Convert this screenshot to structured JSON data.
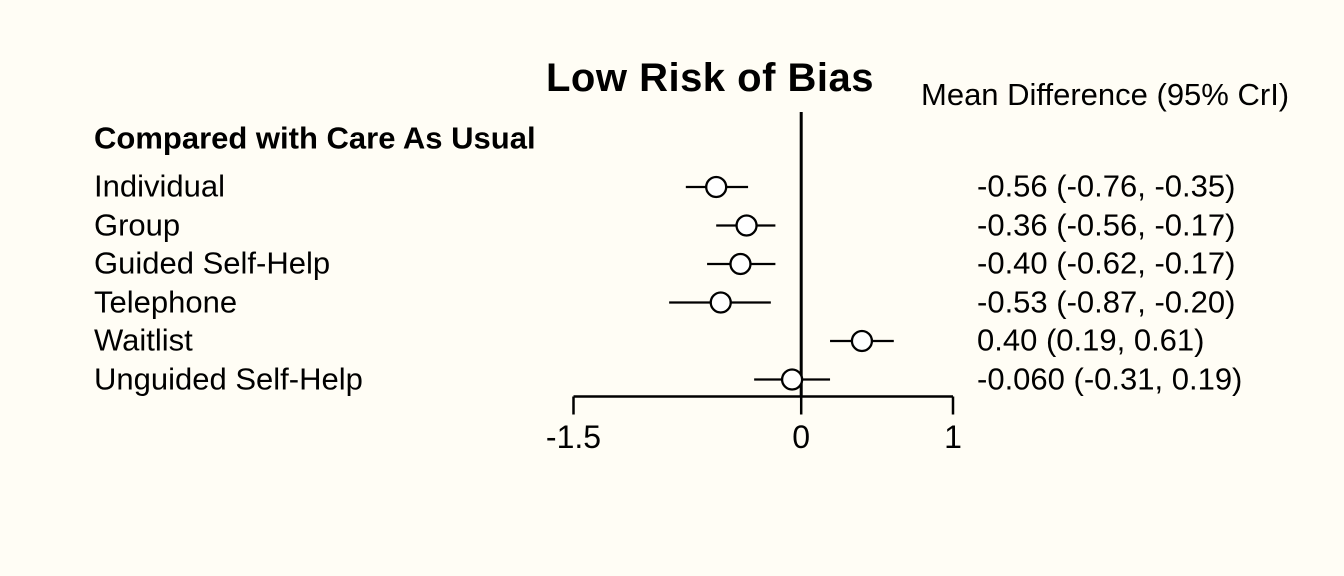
{
  "figure": {
    "title": "Low Risk of Bias",
    "column_header": "Mean Difference (95% CrI)",
    "group_header": "Compared with Care As Usual"
  },
  "chart_data": {
    "type": "forest",
    "title": "Low Risk of Bias",
    "comparison_label": "Compared with Care As Usual",
    "effect_label": "Mean Difference (95% CrI)",
    "categories": [
      "Individual",
      "Group",
      "Guided Self-Help",
      "Telephone",
      "Waitlist",
      "Unguided Self-Help"
    ],
    "means": [
      -0.56,
      -0.36,
      -0.4,
      -0.53,
      0.4,
      -0.06
    ],
    "ci_lower": [
      -0.76,
      -0.56,
      -0.62,
      -0.87,
      0.19,
      -0.31
    ],
    "ci_upper": [
      -0.35,
      -0.17,
      -0.17,
      -0.2,
      0.61,
      0.19
    ],
    "value_labels": [
      "-0.56 (-0.76, -0.35)",
      "-0.36 (-0.56, -0.17)",
      "-0.40 (-0.62, -0.17)",
      "-0.53 (-0.87, -0.20)",
      "0.40 (0.19, 0.61)",
      "-0.060 (-0.31, 0.19)"
    ],
    "x_ticks": [
      -1.5,
      0,
      1
    ],
    "x_tick_labels": [
      "-1.5",
      "0",
      "1"
    ],
    "xlim": [
      -1.5,
      1
    ],
    "reference_line_x": 0,
    "grid": false,
    "legend": false
  },
  "colors": {
    "background": "#fffdf5",
    "foreground": "#000000",
    "marker_fill": "#ffffff"
  }
}
